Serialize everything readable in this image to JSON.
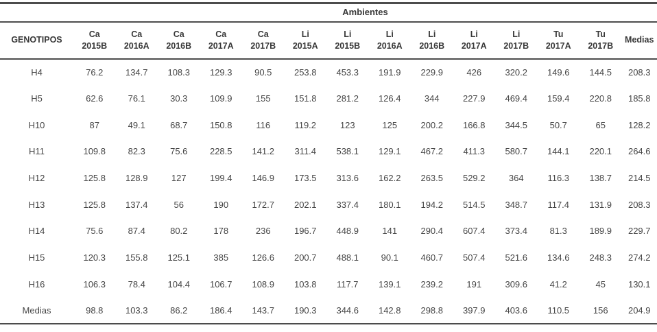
{
  "table": {
    "group_header": "Ambientes",
    "corner_label": "GENOTIPOS",
    "medias_label": "Medias",
    "columns": [
      {
        "site": "Ca",
        "season": "2015B"
      },
      {
        "site": "Ca",
        "season": "2016A"
      },
      {
        "site": "Ca",
        "season": "2016B"
      },
      {
        "site": "Ca",
        "season": "2017A"
      },
      {
        "site": "Ca",
        "season": "2017B"
      },
      {
        "site": "Li",
        "season": "2015A"
      },
      {
        "site": "Li",
        "season": "2015B"
      },
      {
        "site": "Li",
        "season": "2016A"
      },
      {
        "site": "Li",
        "season": "2016B"
      },
      {
        "site": "Li",
        "season": "2017A"
      },
      {
        "site": "Li",
        "season": "2017B"
      },
      {
        "site": "Tu",
        "season": "2017A"
      },
      {
        "site": "Tu",
        "season": "2017B"
      }
    ],
    "rows": [
      {
        "label": "H4",
        "values": [
          "76.2",
          "134.7",
          "108.3",
          "129.3",
          "90.5",
          "253.8",
          "453.3",
          "191.9",
          "229.9",
          "426",
          "320.2",
          "149.6",
          "144.5",
          "208.3"
        ]
      },
      {
        "label": "H5",
        "values": [
          "62.6",
          "76.1",
          "30.3",
          "109.9",
          "155",
          "151.8",
          "281.2",
          "126.4",
          "344",
          "227.9",
          "469.4",
          "159.4",
          "220.8",
          "185.8"
        ]
      },
      {
        "label": "H10",
        "values": [
          "87",
          "49.1",
          "68.7",
          "150.8",
          "116",
          "119.2",
          "123",
          "125",
          "200.2",
          "166.8",
          "344.5",
          "50.7",
          "65",
          "128.2"
        ]
      },
      {
        "label": "H11",
        "values": [
          "109.8",
          "82.3",
          "75.6",
          "228.5",
          "141.2",
          "311.4",
          "538.1",
          "129.1",
          "467.2",
          "411.3",
          "580.7",
          "144.1",
          "220.1",
          "264.6"
        ]
      },
      {
        "label": "H12",
        "values": [
          "125.8",
          "128.9",
          "127",
          "199.4",
          "146.9",
          "173.5",
          "313.6",
          "162.2",
          "263.5",
          "529.2",
          "364",
          "116.3",
          "138.7",
          "214.5"
        ]
      },
      {
        "label": "H13",
        "values": [
          "125.8",
          "137.4",
          "56",
          "190",
          "172.7",
          "202.1",
          "337.4",
          "180.1",
          "194.2",
          "514.5",
          "348.7",
          "117.4",
          "131.9",
          "208.3"
        ]
      },
      {
        "label": "H14",
        "values": [
          "75.6",
          "87.4",
          "80.2",
          "178",
          "236",
          "196.7",
          "448.9",
          "141",
          "290.4",
          "607.4",
          "373.4",
          "81.3",
          "189.9",
          "229.7"
        ]
      },
      {
        "label": "H15",
        "values": [
          "120.3",
          "155.8",
          "125.1",
          "385",
          "126.6",
          "200.7",
          "488.1",
          "90.1",
          "460.7",
          "507.4",
          "521.6",
          "134.6",
          "248.3",
          "274.2"
        ]
      },
      {
        "label": "H16",
        "values": [
          "106.3",
          "78.4",
          "104.4",
          "106.7",
          "108.9",
          "103.8",
          "117.7",
          "139.1",
          "239.2",
          "191",
          "309.6",
          "41.2",
          "45",
          "130.1"
        ]
      },
      {
        "label": "Medias",
        "values": [
          "98.8",
          "103.3",
          "86.2",
          "186.4",
          "143.7",
          "190.3",
          "344.6",
          "142.8",
          "298.8",
          "397.9",
          "403.6",
          "110.5",
          "156",
          "204.9"
        ]
      }
    ]
  },
  "colors": {
    "rule": "#4c4c4c",
    "header_text": "#383838",
    "body_text": "#454545"
  }
}
